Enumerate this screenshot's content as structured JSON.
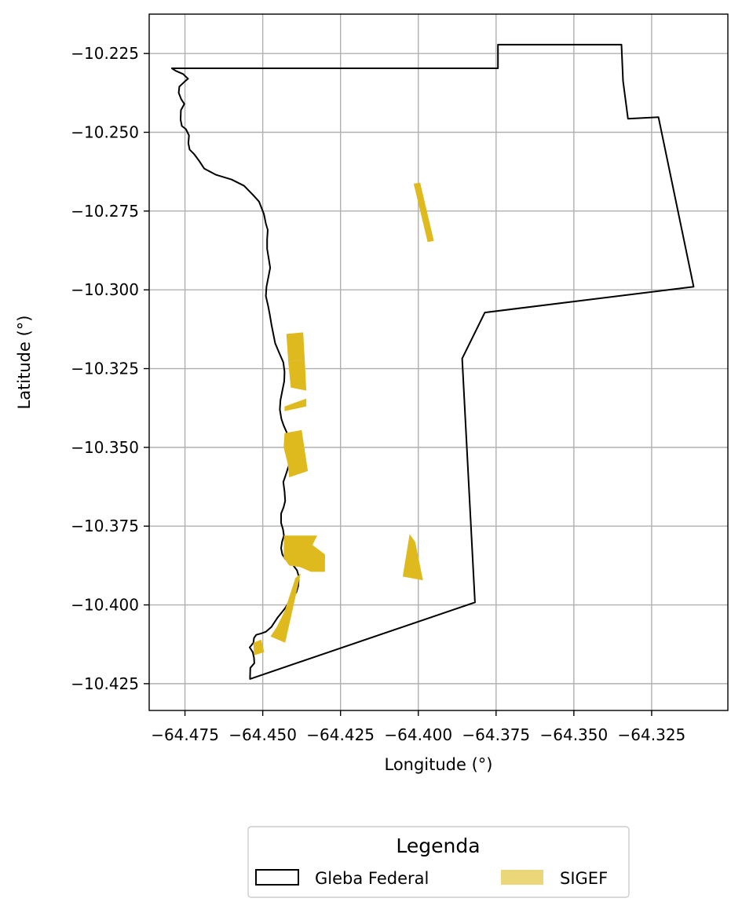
{
  "chart_data": {
    "type": "map",
    "xlabel": "Longitude (°)",
    "ylabel": "Latitude (°)",
    "xlim": [
      -64.4865,
      -64.3005
    ],
    "ylim": [
      -10.4335,
      -10.2125
    ],
    "x_ticks": [
      -64.475,
      -64.45,
      -64.425,
      -64.4,
      -64.375,
      -64.35,
      -64.325
    ],
    "x_tick_labels": [
      "−64.475",
      "−64.450",
      "−64.425",
      "−64.400",
      "−64.375",
      "−64.350",
      "−64.325"
    ],
    "y_ticks": [
      -10.225,
      -10.25,
      -10.275,
      -10.3,
      -10.325,
      -10.35,
      -10.375,
      -10.4,
      -10.425
    ],
    "y_tick_labels": [
      "−10.225",
      "−10.250",
      "−10.275",
      "−10.300",
      "−10.325",
      "−10.350",
      "−10.375",
      "−10.400",
      "−10.425"
    ],
    "grid": true,
    "legend": {
      "title": "Legenda",
      "placement": "bottom-center",
      "entries": [
        {
          "label": "Gleba Federal",
          "style": "outline",
          "color": "#000000"
        },
        {
          "label": "SIGEF",
          "style": "fill",
          "color": "#deba1f"
        }
      ]
    },
    "layers": [
      {
        "name": "Gleba Federal",
        "color": "#000000",
        "polygon": [
          [
            -64.4792,
            -10.2297
          ],
          [
            -64.3744,
            -10.2297
          ],
          [
            -64.3744,
            -10.2222
          ],
          [
            -64.3347,
            -10.2222
          ],
          [
            -64.3342,
            -10.2337
          ],
          [
            -64.3326,
            -10.2457
          ],
          [
            -64.3228,
            -10.2452
          ],
          [
            -64.3115,
            -10.299
          ],
          [
            -64.3786,
            -10.3072
          ],
          [
            -64.3859,
            -10.3218
          ],
          [
            -64.3818,
            -10.3992
          ],
          [
            -64.4541,
            -10.4235
          ],
          [
            -64.454,
            -10.42
          ],
          [
            -64.4527,
            -10.4185
          ],
          [
            -64.4528,
            -10.4168
          ],
          [
            -64.4532,
            -10.415
          ],
          [
            -64.4542,
            -10.4135
          ],
          [
            -64.453,
            -10.412
          ],
          [
            -64.4528,
            -10.4105
          ],
          [
            -64.4521,
            -10.4095
          ],
          [
            -64.4503,
            -10.409
          ],
          [
            -64.449,
            -10.4085
          ],
          [
            -64.4472,
            -10.407
          ],
          [
            -64.4452,
            -10.404
          ],
          [
            -64.4428,
            -10.401
          ],
          [
            -64.4412,
            -10.3985
          ],
          [
            -64.4392,
            -10.396
          ],
          [
            -64.4386,
            -10.394
          ],
          [
            -64.4384,
            -10.391
          ],
          [
            -64.439,
            -10.389
          ],
          [
            -64.4407,
            -10.3868
          ],
          [
            -64.4427,
            -10.3855
          ],
          [
            -64.4437,
            -10.384
          ],
          [
            -64.4441,
            -10.382
          ],
          [
            -64.4438,
            -10.38
          ],
          [
            -64.4432,
            -10.378
          ],
          [
            -64.4435,
            -10.376
          ],
          [
            -64.4441,
            -10.374
          ],
          [
            -64.4441,
            -10.371
          ],
          [
            -64.4433,
            -10.369
          ],
          [
            -64.4428,
            -10.367
          ],
          [
            -64.443,
            -10.364
          ],
          [
            -64.4434,
            -10.361
          ],
          [
            -64.4427,
            -10.359
          ],
          [
            -64.4417,
            -10.356
          ],
          [
            -64.4412,
            -10.353
          ],
          [
            -64.4412,
            -10.35
          ],
          [
            -64.4416,
            -10.347
          ],
          [
            -64.4424,
            -10.345
          ],
          [
            -64.4433,
            -10.343
          ],
          [
            -64.444,
            -10.341
          ],
          [
            -64.4445,
            -10.338
          ],
          [
            -64.4443,
            -10.335
          ],
          [
            -64.4437,
            -10.332
          ],
          [
            -64.4431,
            -10.329
          ],
          [
            -64.443,
            -10.326
          ],
          [
            -64.4434,
            -10.323
          ],
          [
            -64.4447,
            -10.32
          ],
          [
            -64.446,
            -10.317
          ],
          [
            -64.4466,
            -10.314
          ],
          [
            -64.4472,
            -10.311
          ],
          [
            -64.4477,
            -10.308
          ],
          [
            -64.4483,
            -10.305
          ],
          [
            -64.449,
            -10.302
          ],
          [
            -64.4488,
            -10.299
          ],
          [
            -64.4482,
            -10.296
          ],
          [
            -64.4476,
            -10.293
          ],
          [
            -64.4481,
            -10.29
          ],
          [
            -64.4486,
            -10.287
          ],
          [
            -64.4486,
            -10.284
          ],
          [
            -64.4484,
            -10.281
          ],
          [
            -64.449,
            -10.279
          ],
          [
            -64.4496,
            -10.276
          ],
          [
            -64.4512,
            -10.272
          ],
          [
            -64.453,
            -10.27
          ],
          [
            -64.456,
            -10.267
          ],
          [
            -64.46,
            -10.265
          ],
          [
            -64.465,
            -10.2635
          ],
          [
            -64.4688,
            -10.2615
          ],
          [
            -64.4705,
            -10.259
          ],
          [
            -64.472,
            -10.257
          ],
          [
            -64.4735,
            -10.2555
          ],
          [
            -64.4739,
            -10.2535
          ],
          [
            -64.4737,
            -10.251
          ],
          [
            -64.4747,
            -10.249
          ],
          [
            -64.476,
            -10.248
          ],
          [
            -64.4764,
            -10.246
          ],
          [
            -64.4763,
            -10.243
          ],
          [
            -64.4752,
            -10.241
          ],
          [
            -64.4762,
            -10.2395
          ],
          [
            -64.477,
            -10.2375
          ],
          [
            -64.4768,
            -10.2355
          ],
          [
            -64.4752,
            -10.234
          ],
          [
            -64.474,
            -10.233
          ],
          [
            -64.4756,
            -10.2315
          ],
          [
            -64.478,
            -10.2305
          ],
          [
            -64.4792,
            -10.2297
          ]
        ]
      },
      {
        "name": "SIGEF",
        "color": "#deba1f",
        "polygons": [
          [
            [
              -64.4015,
              -10.2663
            ],
            [
              -64.3994,
              -10.266
            ],
            [
              -64.395,
              -10.2845
            ],
            [
              -64.397,
              -10.2848
            ]
          ],
          [
            [
              -64.4424,
              -10.314
            ],
            [
              -64.437,
              -10.3135
            ],
            [
              -64.4365,
              -10.322
            ],
            [
              -64.4418,
              -10.3228
            ]
          ],
          [
            [
              -64.4418,
              -10.3228
            ],
            [
              -64.4365,
              -10.322
            ],
            [
              -64.436,
              -10.332
            ],
            [
              -64.441,
              -10.331
            ]
          ],
          [
            [
              -64.443,
              -10.337
            ],
            [
              -64.436,
              -10.3345
            ],
            [
              -64.436,
              -10.337
            ],
            [
              -64.443,
              -10.3385
            ]
          ],
          [
            [
              -64.443,
              -10.3455
            ],
            [
              -64.4375,
              -10.3445
            ],
            [
              -64.4355,
              -10.3575
            ],
            [
              -64.4415,
              -10.3595
            ],
            [
              -64.442,
              -10.355
            ],
            [
              -64.4433,
              -10.35
            ]
          ],
          [
            [
              -64.4432,
              -10.378
            ],
            [
              -64.4325,
              -10.378
            ],
            [
              -64.434,
              -10.381
            ],
            [
              -64.43,
              -10.384
            ],
            [
              -64.43,
              -10.3895
            ],
            [
              -64.4345,
              -10.3895
            ],
            [
              -64.438,
              -10.388
            ],
            [
              -64.4415,
              -10.3875
            ],
            [
              -64.4433,
              -10.385
            ]
          ],
          [
            [
              -64.405,
              -10.391
            ],
            [
              -64.4028,
              -10.3775
            ],
            [
              -64.401,
              -10.38
            ],
            [
              -64.3985,
              -10.3922
            ]
          ],
          [
            [
              -64.4395,
              -10.3915
            ],
            [
              -64.4378,
              -10.39
            ],
            [
              -64.4428,
              -10.412
            ],
            [
              -64.4475,
              -10.41
            ],
            [
              -64.4455,
              -10.407
            ],
            [
              -64.443,
              -10.402
            ]
          ],
          [
            [
              -64.453,
              -10.412
            ],
            [
              -64.4505,
              -10.411
            ],
            [
              -64.4495,
              -10.415
            ],
            [
              -64.4528,
              -10.416
            ]
          ]
        ]
      }
    ]
  }
}
